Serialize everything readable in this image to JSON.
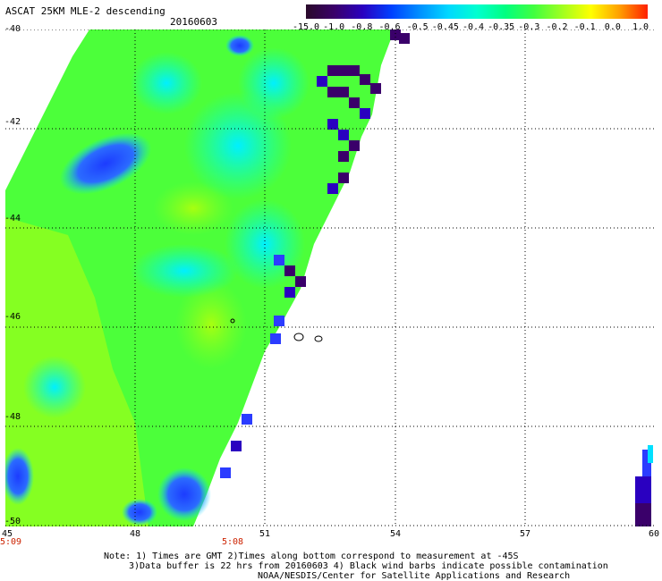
{
  "header": {
    "title": "ASCAT 25KM MLE-2 descending",
    "date": "20160603"
  },
  "colorbar": {
    "labels": [
      "-15.0",
      "-1.0",
      "-0.8",
      "-0.6",
      "-0.5",
      "-0.45",
      "-0.4",
      "-0.35",
      "-0.3",
      "-0.2",
      "-0.1",
      "0.0",
      "1.0"
    ],
    "colors": [
      "#2a0a2a",
      "#3a006a",
      "#2a00c0",
      "#0040ff",
      "#0090ff",
      "#00d8ff",
      "#00ffd0",
      "#00ff80",
      "#40ff40",
      "#a0ff20",
      "#ffff00",
      "#ffa000",
      "#ff2000"
    ]
  },
  "axes": {
    "y_labels": [
      "-40",
      "-42",
      "-44",
      "-46",
      "-48",
      "-50"
    ],
    "x_labels": [
      "45",
      "48",
      "51",
      "54",
      "57",
      "60"
    ]
  },
  "times": [
    "5:09",
    "5:08"
  ],
  "notes": {
    "line1": "Note: 1) Times are GMT 2)Times along bottom correspond to measurement at -45S",
    "line2": "3)Data buffer is 22 hrs from 20160603 4) Black wind barbs indicate possible contamination",
    "line3": "NOAA/NESDIS/Center for Satellite Applications and Research"
  }
}
